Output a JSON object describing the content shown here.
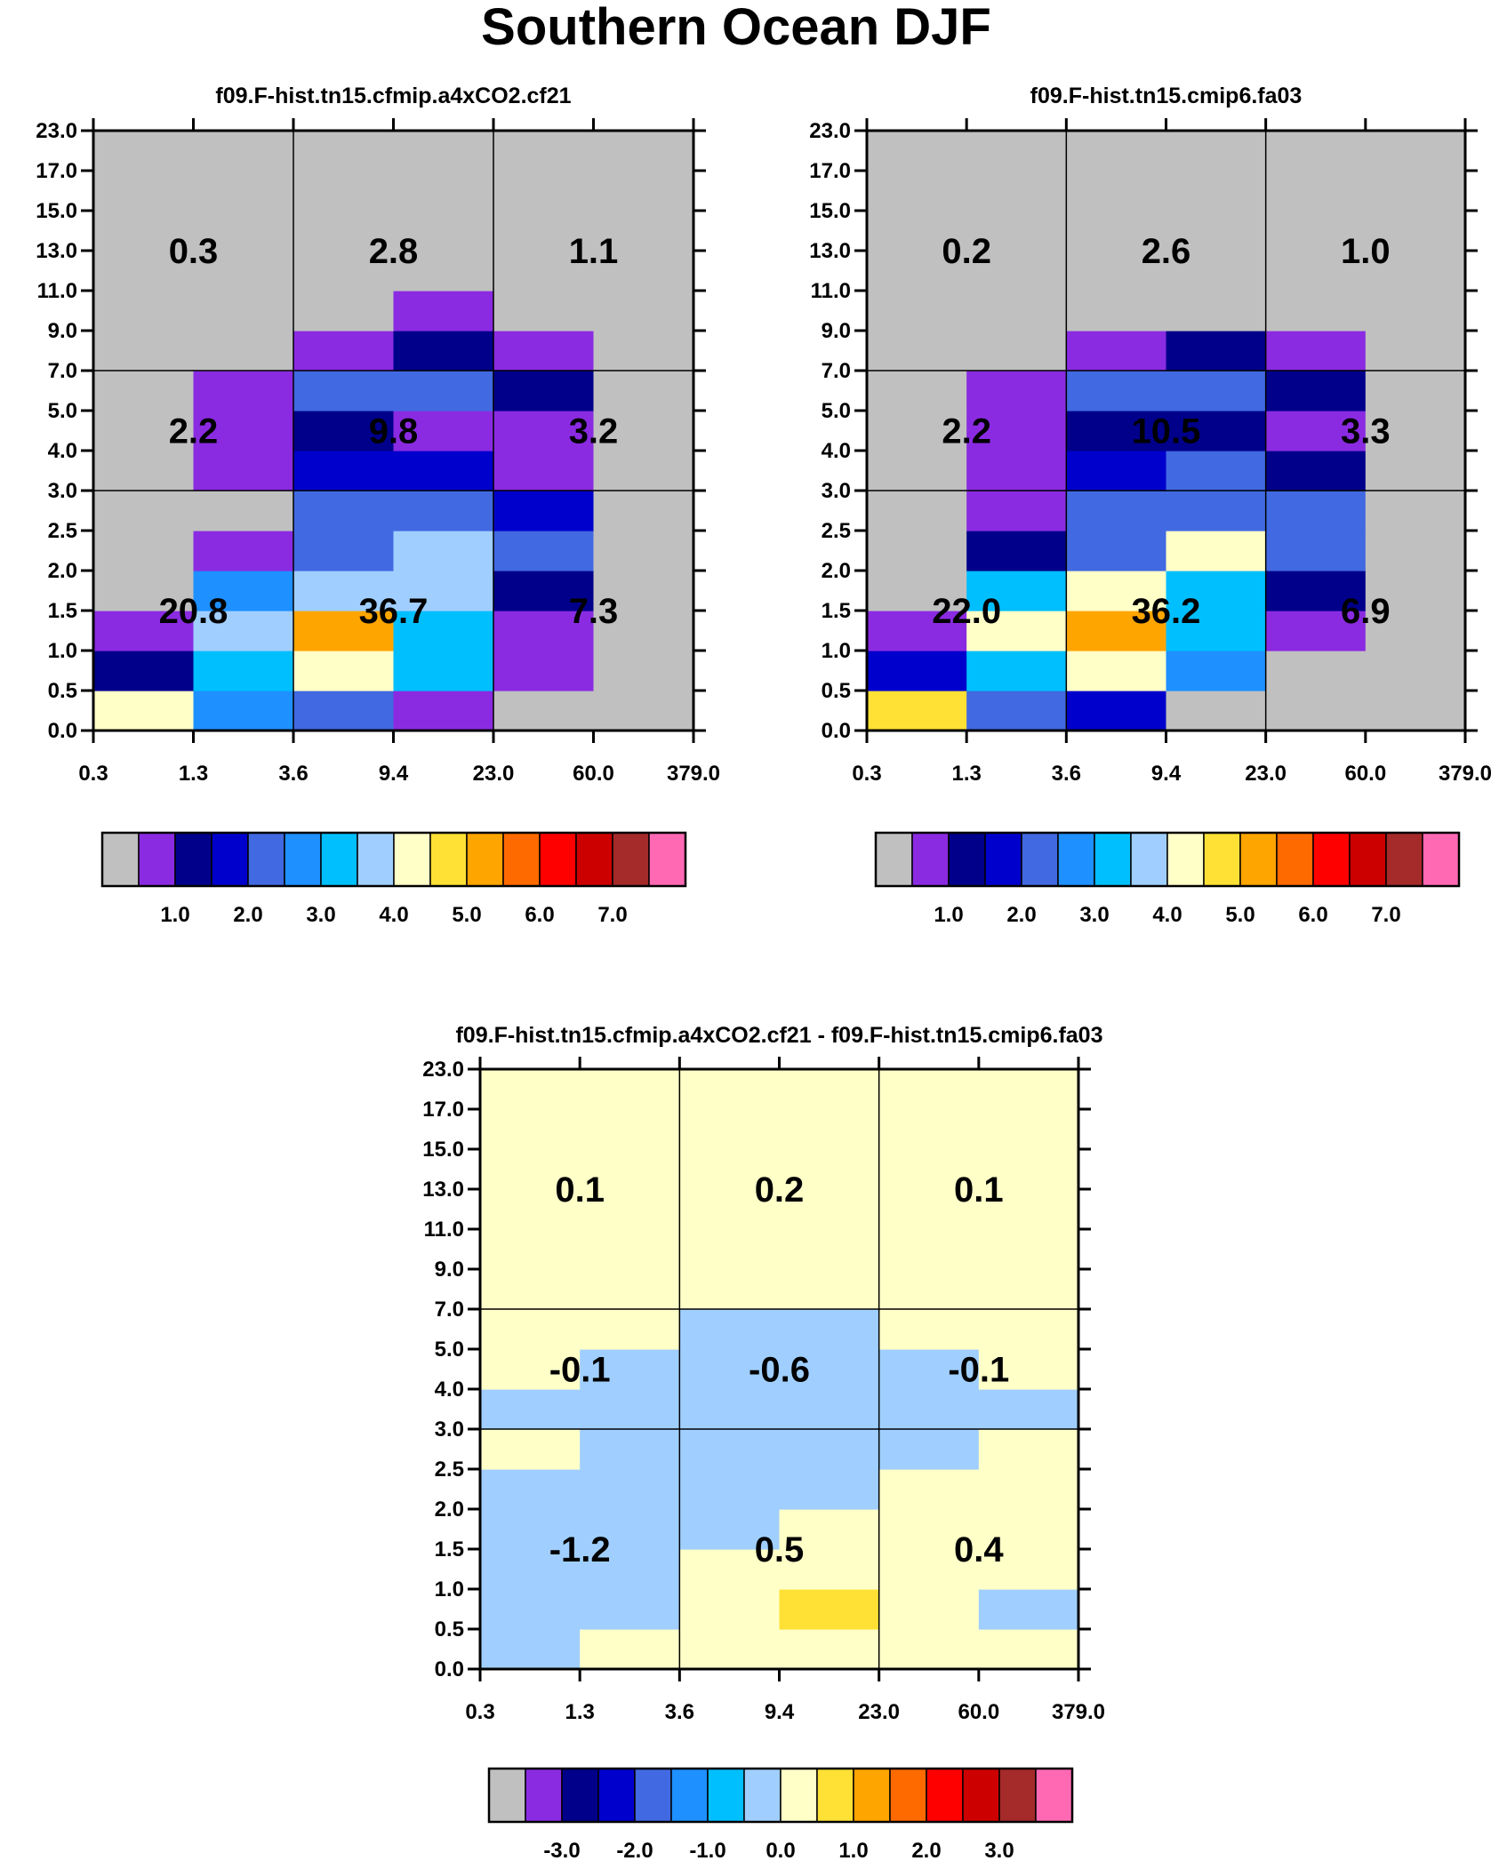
{
  "title": "Southern Ocean DJF",
  "colors": {
    "palette_abs": [
      "#c0c0c0",
      "#8a2be2",
      "#00008b",
      "#0000cd",
      "#4169e1",
      "#1e90ff",
      "#00bfff",
      "#a0cfff",
      "#ffffc8",
      "#ffe135",
      "#ffa500",
      "#ff6a00",
      "#ff0000",
      "#cd0000",
      "#a52a2a",
      "#ff69b4"
    ],
    "palette_diff": [
      "#c0c0c0",
      "#8a2be2",
      "#00008b",
      "#0000cd",
      "#4169e1",
      "#1e90ff",
      "#00bfff",
      "#a0cfff",
      "#ffffc8",
      "#ffe135",
      "#ffa500",
      "#ff6a00",
      "#ff0000",
      "#cd0000",
      "#a52a2a",
      "#ff69b4"
    ]
  },
  "chart_data": [
    {
      "type": "heatmap",
      "title": "f09.F-hist.tn15.cfmip.a4xCO2.cf21",
      "x_ticks": [
        "0.3",
        "1.3",
        "3.6",
        "9.4",
        "23.0",
        "60.0",
        "379.0"
      ],
      "y_ticks": [
        "0.0",
        "0.5",
        "1.0",
        "1.5",
        "2.0",
        "2.5",
        "3.0",
        "4.0",
        "5.0",
        "7.0",
        "9.0",
        "11.0",
        "13.0",
        "15.0",
        "17.0",
        "23.0"
      ],
      "cells_color_index": [
        [
          8,
          5,
          4,
          1,
          0,
          0
        ],
        [
          2,
          6,
          8,
          6,
          1,
          0
        ],
        [
          1,
          7,
          10,
          6,
          1,
          0
        ],
        [
          0,
          5,
          7,
          7,
          2,
          0
        ],
        [
          0,
          1,
          4,
          7,
          4,
          0
        ],
        [
          0,
          0,
          4,
          4,
          3,
          0
        ],
        [
          0,
          1,
          3,
          3,
          1,
          0
        ],
        [
          0,
          1,
          2,
          1,
          1,
          0
        ],
        [
          0,
          1,
          4,
          4,
          2,
          0
        ],
        [
          0,
          0,
          1,
          2,
          1,
          0
        ],
        [
          0,
          0,
          0,
          1,
          0,
          0
        ],
        [
          0,
          0,
          0,
          0,
          0,
          0
        ],
        [
          0,
          0,
          0,
          0,
          0,
          0
        ],
        [
          0,
          0,
          0,
          0,
          0,
          0
        ],
        [
          0,
          0,
          0,
          0,
          0,
          0
        ]
      ],
      "region_values": [
        [
          "20.8",
          "36.7",
          "7.3"
        ],
        [
          "2.2",
          "9.8",
          "3.2"
        ],
        [
          "0.3",
          "2.8",
          "1.1"
        ]
      ],
      "colorbar": {
        "labels": [
          "1.0",
          "2.0",
          "3.0",
          "4.0",
          "5.0",
          "6.0",
          "7.0"
        ]
      }
    },
    {
      "type": "heatmap",
      "title": "f09.F-hist.tn15.cmip6.fa03",
      "x_ticks": [
        "0.3",
        "1.3",
        "3.6",
        "9.4",
        "23.0",
        "60.0",
        "379.0"
      ],
      "y_ticks": [
        "0.0",
        "0.5",
        "1.0",
        "1.5",
        "2.0",
        "2.5",
        "3.0",
        "4.0",
        "5.0",
        "7.0",
        "9.0",
        "11.0",
        "13.0",
        "15.0",
        "17.0",
        "23.0"
      ],
      "cells_color_index": [
        [
          9,
          4,
          3,
          0,
          0,
          0
        ],
        [
          3,
          6,
          8,
          5,
          0,
          0
        ],
        [
          1,
          8,
          10,
          6,
          1,
          0
        ],
        [
          0,
          6,
          8,
          6,
          2,
          0
        ],
        [
          0,
          2,
          4,
          8,
          4,
          0
        ],
        [
          0,
          1,
          4,
          4,
          4,
          0
        ],
        [
          0,
          1,
          3,
          4,
          2,
          0
        ],
        [
          0,
          1,
          2,
          2,
          1,
          0
        ],
        [
          0,
          1,
          4,
          4,
          2,
          0
        ],
        [
          0,
          0,
          1,
          2,
          1,
          0
        ],
        [
          0,
          0,
          0,
          0,
          0,
          0
        ],
        [
          0,
          0,
          0,
          0,
          0,
          0
        ],
        [
          0,
          0,
          0,
          0,
          0,
          0
        ],
        [
          0,
          0,
          0,
          0,
          0,
          0
        ],
        [
          0,
          0,
          0,
          0,
          0,
          0
        ]
      ],
      "region_values": [
        [
          "22.0",
          "36.2",
          "6.9"
        ],
        [
          "2.2",
          "10.5",
          "3.3"
        ],
        [
          "0.2",
          "2.6",
          "1.0"
        ]
      ],
      "colorbar": {
        "labels": [
          "1.0",
          "2.0",
          "3.0",
          "4.0",
          "5.0",
          "6.0",
          "7.0"
        ]
      }
    },
    {
      "type": "heatmap",
      "title": "f09.F-hist.tn15.cfmip.a4xCO2.cf21 - f09.F-hist.tn15.cmip6.fa03",
      "x_ticks": [
        "0.3",
        "1.3",
        "3.6",
        "9.4",
        "23.0",
        "60.0",
        "379.0"
      ],
      "y_ticks": [
        "0.0",
        "0.5",
        "1.0",
        "1.5",
        "2.0",
        "2.5",
        "3.0",
        "4.0",
        "5.0",
        "7.0",
        "9.0",
        "11.0",
        "13.0",
        "15.0",
        "17.0",
        "23.0"
      ],
      "cells_color_index": [
        [
          7,
          8,
          8,
          8,
          8,
          8
        ],
        [
          7,
          7,
          8,
          9,
          8,
          7
        ],
        [
          7,
          7,
          8,
          8,
          8,
          8
        ],
        [
          7,
          7,
          7,
          8,
          8,
          8
        ],
        [
          7,
          7,
          7,
          7,
          8,
          8
        ],
        [
          8,
          7,
          7,
          7,
          7,
          8
        ],
        [
          7,
          7,
          7,
          7,
          7,
          7
        ],
        [
          8,
          7,
          7,
          7,
          7,
          8
        ],
        [
          8,
          8,
          7,
          7,
          8,
          8
        ],
        [
          8,
          8,
          8,
          8,
          8,
          8
        ],
        [
          8,
          8,
          8,
          8,
          8,
          8
        ],
        [
          8,
          8,
          8,
          8,
          8,
          8
        ],
        [
          8,
          8,
          8,
          8,
          8,
          8
        ],
        [
          8,
          8,
          8,
          8,
          8,
          8
        ],
        [
          8,
          8,
          8,
          8,
          8,
          8
        ]
      ],
      "region_values": [
        [
          "-1.2",
          "0.5",
          "0.4"
        ],
        [
          "-0.1",
          "-0.6",
          "-0.1"
        ],
        [
          "0.1",
          "0.2",
          "0.1"
        ]
      ],
      "colorbar": {
        "labels": [
          "-3.0",
          "-2.0",
          "-1.0",
          "0.0",
          "1.0",
          "2.0",
          "3.0"
        ]
      }
    }
  ]
}
